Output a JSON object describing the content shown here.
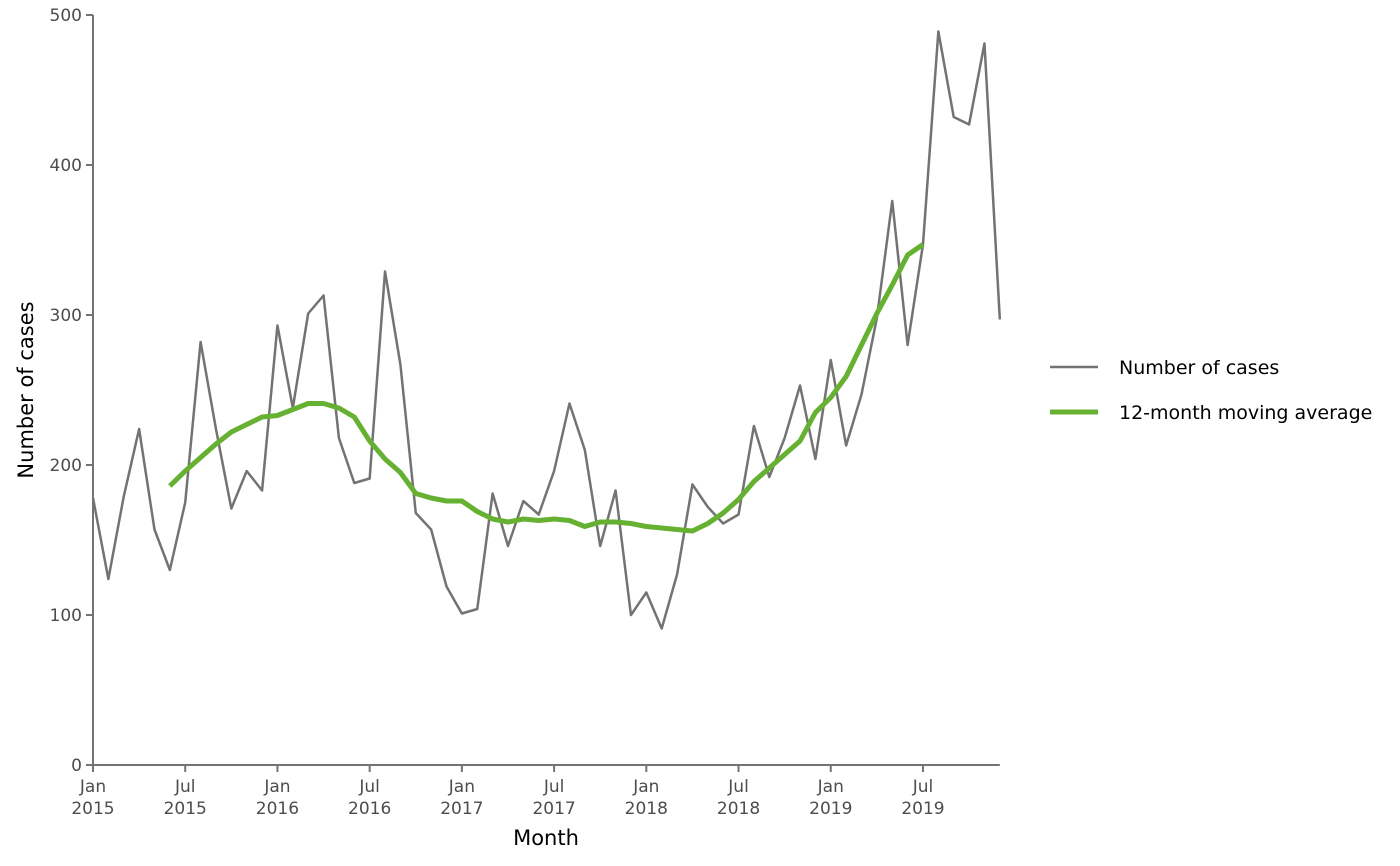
{
  "chart_data": {
    "type": "line",
    "xlabel": "Month",
    "ylabel": "Number of cases",
    "ylim": [
      0,
      500
    ],
    "y_ticks": [
      0,
      100,
      200,
      300,
      400,
      500
    ],
    "x_ticks": [
      {
        "index": 0,
        "line1": "Jan",
        "line2": "2015"
      },
      {
        "index": 6,
        "line1": "Jul",
        "line2": "2015"
      },
      {
        "index": 12,
        "line1": "Jan",
        "line2": "2016"
      },
      {
        "index": 18,
        "line1": "Jul",
        "line2": "2016"
      },
      {
        "index": 24,
        "line1": "Jan",
        "line2": "2017"
      },
      {
        "index": 30,
        "line1": "Jul",
        "line2": "2017"
      },
      {
        "index": 36,
        "line1": "Jan",
        "line2": "2018"
      },
      {
        "index": 42,
        "line1": "Jul",
        "line2": "2018"
      },
      {
        "index": 48,
        "line1": "Jan",
        "line2": "2019"
      },
      {
        "index": 54,
        "line1": "Jul",
        "line2": "2019"
      }
    ],
    "x_start": "2015-01",
    "grid": false,
    "legend_position": "right",
    "series": [
      {
        "name": "Number of cases",
        "color": "#737373",
        "start_index": 0,
        "values": [
          178,
          124,
          179,
          224,
          157,
          130,
          175,
          282,
          224,
          171,
          196,
          183,
          293,
          238,
          301,
          313,
          218,
          188,
          191,
          329,
          267,
          168,
          157,
          119,
          101,
          104,
          181,
          146,
          176,
          167,
          196,
          241,
          210,
          146,
          183,
          100,
          115,
          91,
          127,
          187,
          172,
          161,
          167,
          226,
          192,
          218,
          253,
          204,
          270,
          213,
          247,
          298,
          376,
          280,
          347,
          489,
          432,
          427,
          481,
          297
        ]
      },
      {
        "name": "12-month moving average",
        "color": "#66b032",
        "start_index": 5,
        "values": [
          186,
          196,
          205,
          214,
          222,
          227,
          232,
          233,
          237,
          241,
          241,
          238,
          232,
          216,
          204,
          195,
          181,
          178,
          176,
          176,
          169,
          164,
          162,
          164,
          163,
          164,
          163,
          159,
          162,
          162,
          161,
          159,
          158,
          157,
          156,
          161,
          168,
          177,
          189,
          198,
          207,
          216,
          235,
          245,
          259,
          280,
          301,
          320,
          340,
          347
        ]
      }
    ]
  }
}
